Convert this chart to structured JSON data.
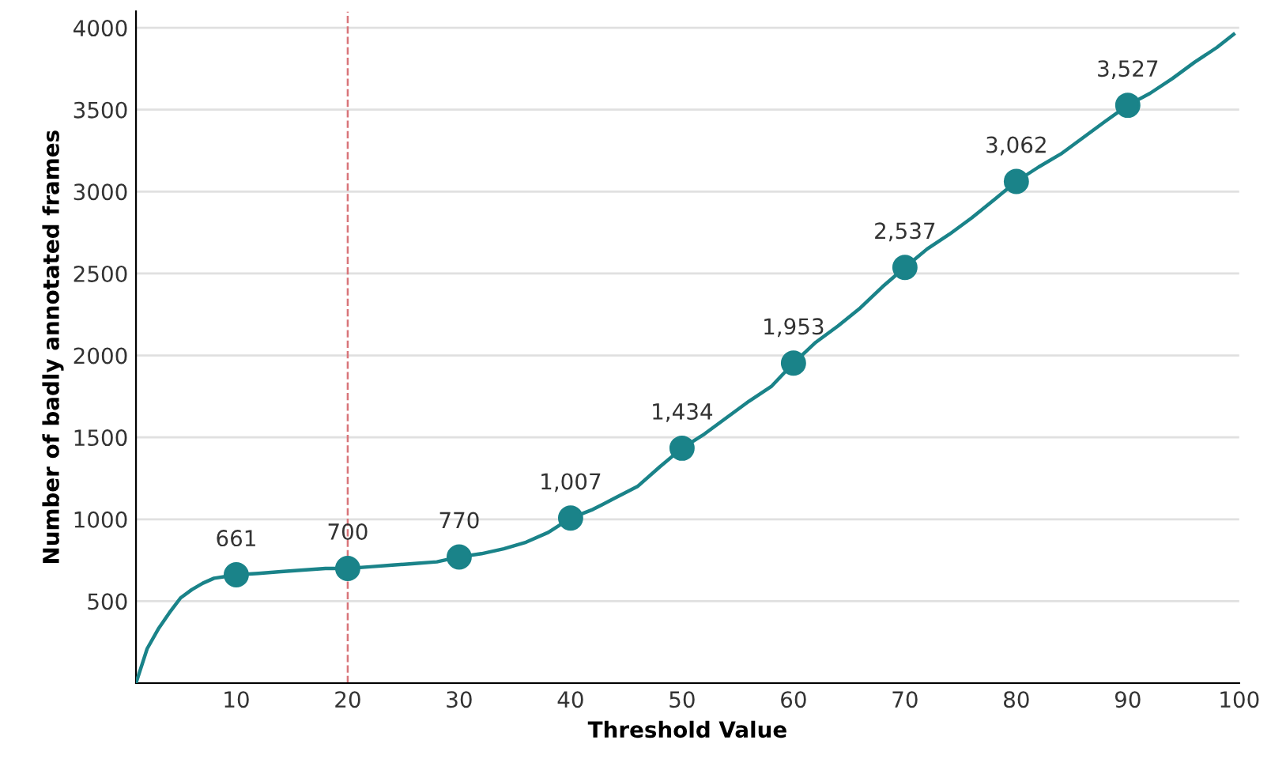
{
  "chart_data": {
    "type": "line",
    "xlabel": "Threshold Value",
    "ylabel": "Number of badly annotated frames",
    "xlim": [
      1,
      100
    ],
    "xticks": [
      10,
      20,
      30,
      40,
      50,
      60,
      70,
      80,
      90,
      100
    ],
    "ylim": [
      0,
      4100
    ],
    "yticks": [
      500,
      1000,
      1500,
      2000,
      2500,
      3000,
      3500,
      4000
    ],
    "grid": "y",
    "legend": false,
    "series": [
      {
        "color": "#1a8389",
        "marker": "none",
        "x": [
          1,
          2,
          3,
          4,
          5,
          6,
          7,
          8,
          9,
          10,
          12,
          14,
          16,
          18,
          20,
          22,
          24,
          26,
          28,
          30,
          32,
          34,
          36,
          38,
          40,
          42,
          44,
          46,
          48,
          50,
          52,
          54,
          56,
          58,
          60,
          62,
          64,
          66,
          68,
          70,
          72,
          74,
          76,
          78,
          80,
          82,
          84,
          86,
          88,
          90,
          92,
          94,
          96,
          98,
          99.5
        ],
        "values": [
          0,
          210,
          330,
          430,
          520,
          570,
          610,
          640,
          650,
          661,
          670,
          680,
          690,
          700,
          700,
          710,
          720,
          730,
          740,
          770,
          790,
          820,
          860,
          920,
          1007,
          1060,
          1130,
          1200,
          1320,
          1434,
          1520,
          1620,
          1720,
          1810,
          1953,
          2080,
          2180,
          2290,
          2420,
          2537,
          2650,
          2740,
          2840,
          2950,
          3062,
          3150,
          3230,
          3330,
          3430,
          3527,
          3600,
          3690,
          3790,
          3880,
          3960
        ]
      },
      {
        "type": "scatter",
        "color": "#1a8389",
        "marker": "circle",
        "x": [
          10,
          20,
          30,
          40,
          50,
          60,
          70,
          80,
          90
        ],
        "values": [
          661,
          700,
          770,
          1007,
          1434,
          1953,
          2537,
          3062,
          3527
        ],
        "value_labels": [
          "661",
          "700",
          "770",
          "1,007",
          "1,434",
          "1,953",
          "2,537",
          "3,062",
          "3,527"
        ]
      }
    ],
    "ref_lines": [
      {
        "axis": "x",
        "value": 20,
        "color": "#d9757a",
        "line_style": "dashed"
      }
    ]
  }
}
